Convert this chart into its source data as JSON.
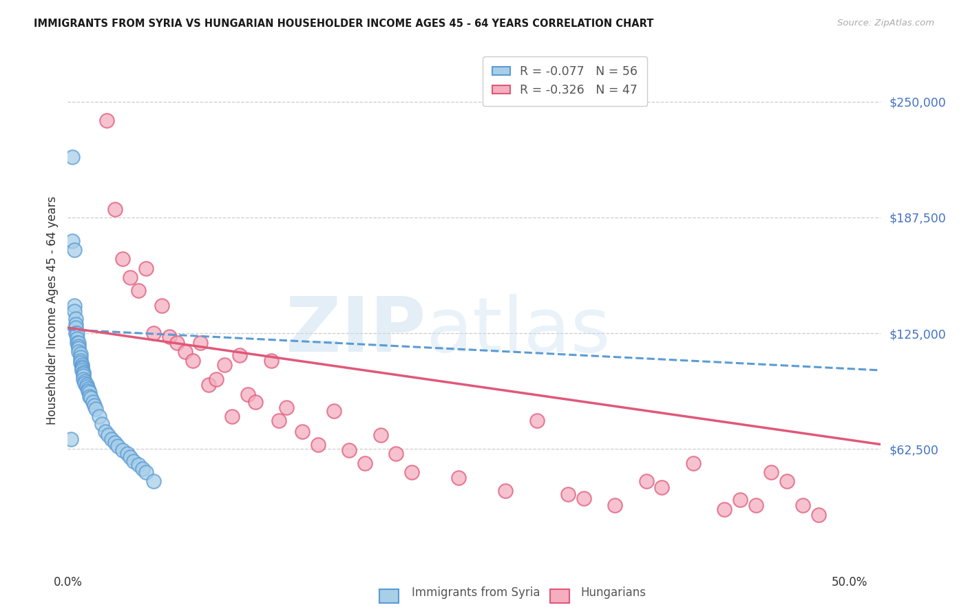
{
  "title": "IMMIGRANTS FROM SYRIA VS HUNGARIAN HOUSEHOLDER INCOME AGES 45 - 64 YEARS CORRELATION CHART",
  "source": "Source: ZipAtlas.com",
  "ylabel": "Householder Income Ages 45 - 64 years",
  "ytick_labels": [
    "$62,500",
    "$125,000",
    "$187,500",
    "$250,000"
  ],
  "ytick_values": [
    62500,
    125000,
    187500,
    250000
  ],
  "ymin": 0,
  "ymax": 275000,
  "xmin": 0.0,
  "xmax": 0.52,
  "legend_label1": "Immigrants from Syria",
  "legend_label2": "Hungarians",
  "blue_color": "#a8cfe8",
  "pink_color": "#f4aec0",
  "blue_edge_color": "#5b9bd5",
  "pink_edge_color": "#e05878",
  "right_label_color": "#4472c4",
  "blue_R": -0.077,
  "blue_N": 56,
  "pink_R": -0.326,
  "pink_N": 47,
  "blue_scatter_x": [
    0.002,
    0.003,
    0.003,
    0.004,
    0.004,
    0.004,
    0.005,
    0.005,
    0.005,
    0.005,
    0.006,
    0.006,
    0.006,
    0.007,
    0.007,
    0.007,
    0.007,
    0.008,
    0.008,
    0.008,
    0.008,
    0.009,
    0.009,
    0.009,
    0.009,
    0.01,
    0.01,
    0.01,
    0.01,
    0.011,
    0.011,
    0.012,
    0.012,
    0.013,
    0.013,
    0.014,
    0.014,
    0.015,
    0.016,
    0.017,
    0.018,
    0.02,
    0.022,
    0.024,
    0.026,
    0.028,
    0.03,
    0.032,
    0.035,
    0.038,
    0.04,
    0.042,
    0.045,
    0.048,
    0.05,
    0.055
  ],
  "blue_scatter_y": [
    68000,
    220000,
    175000,
    170000,
    140000,
    137000,
    133000,
    130000,
    128000,
    125000,
    125000,
    122000,
    120000,
    120000,
    118000,
    117000,
    115000,
    114000,
    112000,
    110000,
    109000,
    108000,
    107000,
    106000,
    105000,
    104000,
    103000,
    102000,
    100000,
    99000,
    98000,
    97000,
    96000,
    95000,
    94000,
    93000,
    91000,
    90000,
    88000,
    86000,
    84000,
    80000,
    76000,
    72000,
    70000,
    68000,
    66000,
    64000,
    62000,
    60000,
    58000,
    56000,
    54000,
    52000,
    50000,
    45000
  ],
  "pink_scatter_x": [
    0.025,
    0.03,
    0.035,
    0.04,
    0.045,
    0.05,
    0.055,
    0.06,
    0.065,
    0.07,
    0.075,
    0.08,
    0.085,
    0.09,
    0.095,
    0.1,
    0.105,
    0.11,
    0.115,
    0.12,
    0.13,
    0.135,
    0.14,
    0.15,
    0.16,
    0.17,
    0.18,
    0.19,
    0.2,
    0.21,
    0.22,
    0.25,
    0.28,
    0.3,
    0.32,
    0.33,
    0.35,
    0.37,
    0.38,
    0.4,
    0.42,
    0.43,
    0.44,
    0.45,
    0.46,
    0.47,
    0.48
  ],
  "pink_scatter_y": [
    240000,
    192000,
    165000,
    155000,
    148000,
    160000,
    125000,
    140000,
    123000,
    120000,
    115000,
    110000,
    120000,
    97000,
    100000,
    108000,
    80000,
    113000,
    92000,
    88000,
    110000,
    78000,
    85000,
    72000,
    65000,
    83000,
    62000,
    55000,
    70000,
    60000,
    50000,
    47000,
    40000,
    78000,
    38000,
    36000,
    32000,
    45000,
    42000,
    55000,
    30000,
    35000,
    32000,
    50000,
    45000,
    32000,
    27000
  ]
}
